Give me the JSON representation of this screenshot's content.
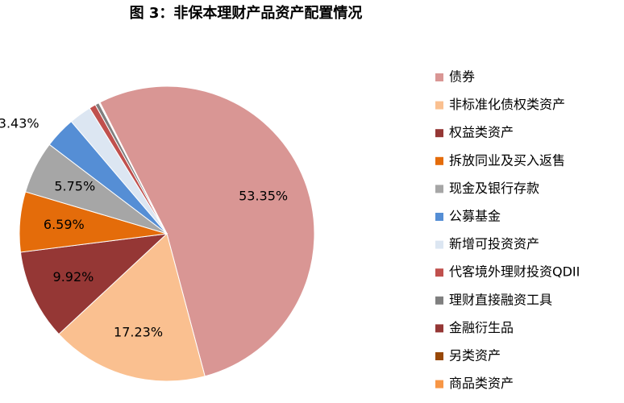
{
  "chart_data": {
    "type": "pie",
    "title": "图 3：非保本理财产品资产配置情况",
    "categories": [
      "债券",
      "非标准化债权类资产",
      "权益类资产",
      "拆放同业及买入返售",
      "现金及银行存款",
      "公募基金",
      "新增可投资资产",
      "代客境外理财投资QDII",
      "理财直接融资工具",
      "金融衍生品",
      "另类资产",
      "商品类资产"
    ],
    "values": [
      53.35,
      17.23,
      9.92,
      6.59,
      5.75,
      3.43,
      2.45,
      0.72,
      0.42,
      0.08,
      0.03,
      0.03
    ],
    "value_labels": [
      "53.35%",
      "17.23%",
      "9.92%",
      "6.59%",
      "5.75%",
      "3.43%",
      null,
      null,
      null,
      null,
      null,
      null
    ],
    "colors": [
      "#d99694",
      "#fac090",
      "#953735",
      "#e46c0a",
      "#a6a6a6",
      "#558ed5",
      "#dce6f2",
      "#c0504d",
      "#7f7f7f",
      "#953735",
      "#984807",
      "#f79646"
    ],
    "legend": "right"
  }
}
